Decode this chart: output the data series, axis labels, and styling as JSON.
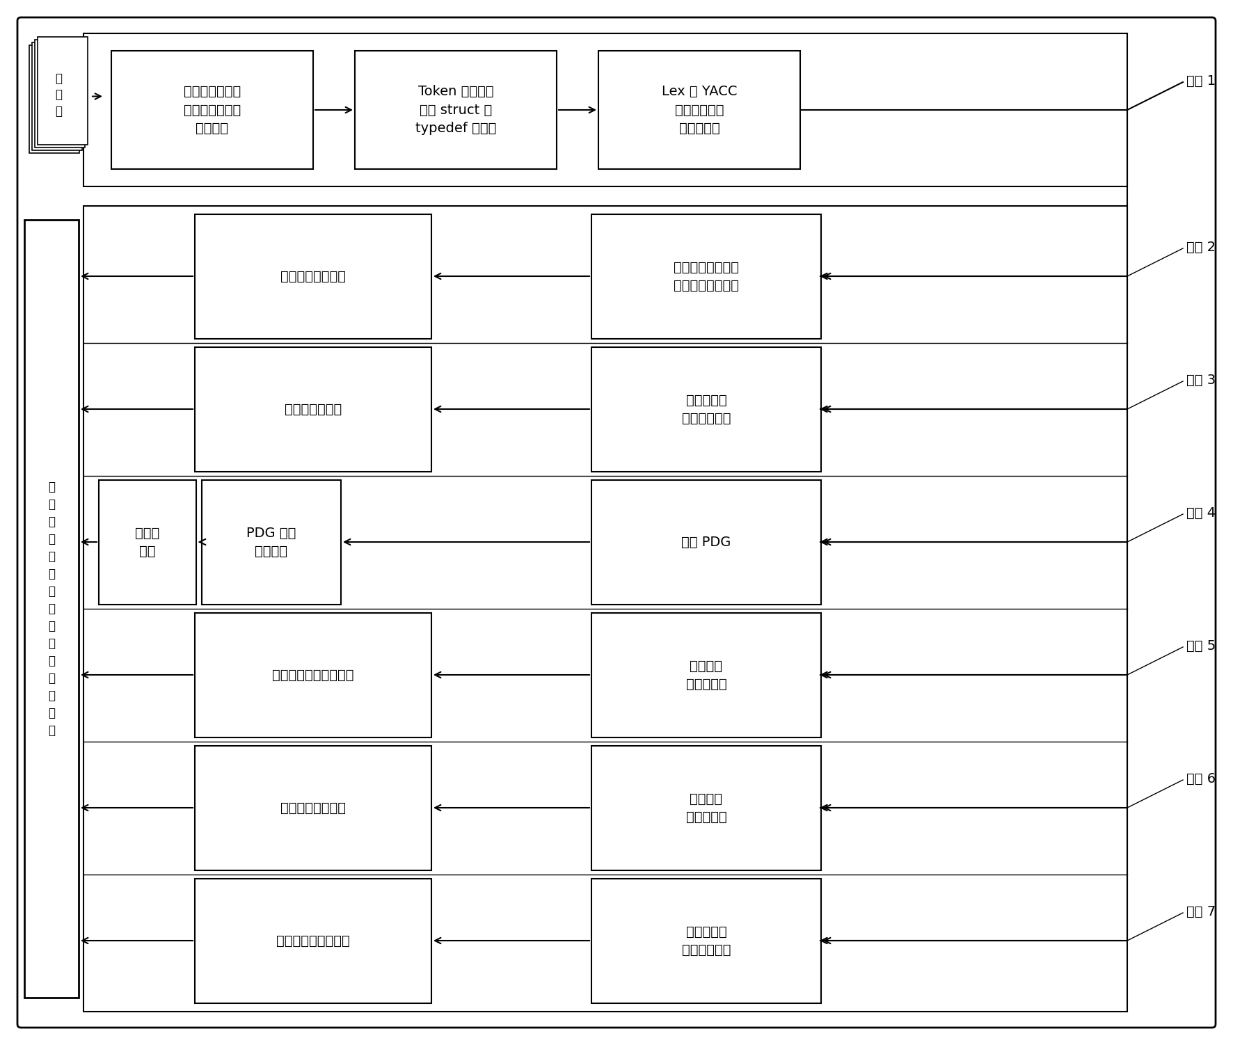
{
  "bg_color": "#ffffff",
  "box_fc": "#ffffff",
  "box_ec": "#000000",
  "source_text": "源\n程\n序",
  "output_text": "输\n出\n冗\n余\n代\n码\n相\n关\n的\n缺\n陷\n检\n测\n报\n告",
  "step1_box1": "预处理：头文件\n包含，宏替换和\n条件编译",
  "step1_box2": "Token 流分析，\n提取 struct 和\ntypedef 标识符",
  "step1_box3": "Lex 和 YACC\n环境下生成程\n序的语法树",
  "step2_left": "检测显式幂等缺陷",
  "step2_right": "分析可能包含幂等\n操作的语法树子树",
  "step3_left": "检测冗余的赋值",
  "step3_right": "局部变量的\n过程内部分析",
  "step4_left": "检测死\n代码",
  "step4_mid": "PDG 图的\n结构分析",
  "step4_right": "生成 PDG",
  "step5_left": "检测冗余的条件表达式",
  "step5_right": "基于路径\n的变量分析",
  "step6_left": "检测隐式幂等缺陷",
  "step6_right": "基于路径\n的变量分析",
  "step7_left": "检测冗余的函数参数",
  "step7_right": "函数参数的\n过程内部分析",
  "steps": [
    "步骤 1",
    "步骤 2",
    "步骤 3",
    "步骤 4",
    "步骤 5",
    "步骤 6",
    "步骤 7"
  ],
  "font_size": 14,
  "small_font": 12
}
